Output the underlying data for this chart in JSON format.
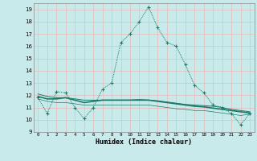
{
  "title": "",
  "xlabel": "Humidex (Indice chaleur)",
  "background_color": "#c8eaea",
  "grid_color": "#e8b8b8",
  "line_color": "#1a7a6a",
  "xlim": [
    -0.5,
    23.5
  ],
  "ylim": [
    9,
    19.5
  ],
  "xticks": [
    0,
    1,
    2,
    3,
    4,
    5,
    6,
    7,
    8,
    9,
    10,
    11,
    12,
    13,
    14,
    15,
    16,
    17,
    18,
    19,
    20,
    21,
    22,
    23
  ],
  "yticks": [
    9,
    10,
    11,
    12,
    13,
    14,
    15,
    16,
    17,
    18,
    19
  ],
  "series1_x": [
    0,
    1,
    2,
    3,
    4,
    5,
    6,
    7,
    8,
    9,
    10,
    11,
    12,
    13,
    14,
    15,
    16,
    17,
    18,
    19,
    20,
    21,
    22,
    23
  ],
  "series1_y": [
    11.8,
    10.5,
    12.3,
    12.2,
    11.0,
    10.1,
    11.0,
    12.5,
    13.0,
    16.3,
    17.0,
    18.0,
    19.2,
    17.5,
    16.3,
    16.0,
    14.5,
    12.8,
    12.2,
    11.2,
    11.0,
    10.5,
    9.6,
    10.5
  ],
  "series2_x": [
    0,
    1,
    2,
    3,
    4,
    5,
    6,
    7,
    8,
    9,
    10,
    11,
    12,
    13,
    14,
    15,
    16,
    17,
    18,
    19,
    20,
    21,
    22,
    23
  ],
  "series2_y": [
    11.9,
    11.7,
    11.7,
    11.8,
    11.6,
    11.4,
    11.5,
    11.6,
    11.6,
    11.6,
    11.6,
    11.6,
    11.6,
    11.5,
    11.4,
    11.3,
    11.2,
    11.1,
    11.05,
    10.95,
    10.85,
    10.75,
    10.65,
    10.55
  ],
  "series3_x": [
    0,
    1,
    2,
    3,
    4,
    5,
    6,
    7,
    8,
    9,
    10,
    11,
    12,
    13,
    14,
    15,
    16,
    17,
    18,
    19,
    20,
    21,
    22,
    23
  ],
  "series3_y": [
    12.1,
    11.9,
    11.8,
    11.8,
    11.7,
    11.6,
    11.6,
    11.6,
    11.6,
    11.6,
    11.6,
    11.65,
    11.6,
    11.55,
    11.45,
    11.35,
    11.25,
    11.2,
    11.15,
    11.1,
    11.0,
    10.85,
    10.75,
    10.65
  ],
  "series4_x": [
    0,
    1,
    2,
    3,
    4,
    5,
    6,
    7,
    8,
    9,
    10,
    11,
    12,
    13,
    14,
    15,
    16,
    17,
    18,
    19,
    20,
    21,
    22,
    23
  ],
  "series4_y": [
    11.7,
    11.5,
    11.4,
    11.4,
    11.3,
    11.2,
    11.2,
    11.2,
    11.2,
    11.2,
    11.2,
    11.2,
    11.2,
    11.1,
    11.0,
    10.9,
    10.85,
    10.75,
    10.75,
    10.65,
    10.55,
    10.45,
    10.35,
    10.45
  ]
}
